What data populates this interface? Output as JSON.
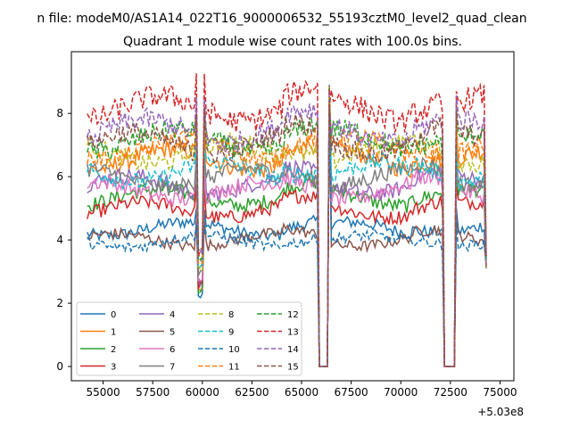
{
  "chart_data": {
    "type": "line",
    "suptitle": "n file: modeM0/AS1A14_022T16_9000006532_55193cztM0_level2_quad_clean",
    "title": "Quadrant 1 module wise count rates with 100.0s bins.",
    "xlabel": "",
    "ylabel": "",
    "x_offset_label": "+5.03e8",
    "xlim": [
      53400,
      75700
    ],
    "ylim": [
      -0.45,
      9.95
    ],
    "x_ticks": [
      55000,
      57500,
      60000,
      62500,
      65000,
      67500,
      70000,
      72500,
      75000
    ],
    "x_tick_labels": [
      "55000",
      "57500",
      "60000",
      "62500",
      "65000",
      "67500",
      "70000",
      "72500",
      "75000"
    ],
    "y_ticks": [
      0,
      2,
      4,
      6,
      8
    ],
    "y_tick_labels": [
      "0",
      "2",
      "4",
      "6",
      "8"
    ],
    "x_range": [
      54200,
      74300
    ],
    "bin_width_s": 100,
    "features": {
      "dip": {
        "center": 59900,
        "min": 2.1
      },
      "gaps": [
        [
          65900,
          66350
        ],
        [
          72150,
          72750
        ]
      ],
      "spike_before_gap": 8.9
    },
    "legend": {
      "location": "lower-left",
      "columns": 4
    },
    "series": [
      {
        "name": "0",
        "mean": 4.35,
        "color": "#1f77b4",
        "dashed": false
      },
      {
        "name": "1",
        "mean": 6.55,
        "color": "#ff7f0e",
        "dashed": false
      },
      {
        "name": "2",
        "mean": 5.35,
        "color": "#2ca02c",
        "dashed": false
      },
      {
        "name": "3",
        "mean": 4.95,
        "color": "#d62728",
        "dashed": false
      },
      {
        "name": "4",
        "mean": 5.75,
        "color": "#9467bd",
        "dashed": false
      },
      {
        "name": "5",
        "mean": 4.0,
        "color": "#8c564b",
        "dashed": false
      },
      {
        "name": "6",
        "mean": 5.55,
        "color": "#e377c2",
        "dashed": false
      },
      {
        "name": "7",
        "mean": 5.95,
        "color": "#7f7f7f",
        "dashed": false
      },
      {
        "name": "8",
        "mean": 6.75,
        "color": "#bcbd22",
        "dashed": true
      },
      {
        "name": "9",
        "mean": 6.15,
        "color": "#17becf",
        "dashed": true
      },
      {
        "name": "10",
        "mean": 3.95,
        "color": "#1f77b4",
        "dashed": true
      },
      {
        "name": "11",
        "mean": 6.9,
        "color": "#ff7f0e",
        "dashed": true
      },
      {
        "name": "12",
        "mean": 7.15,
        "color": "#2ca02c",
        "dashed": true
      },
      {
        "name": "13",
        "mean": 8.15,
        "color": "#d62728",
        "dashed": true
      },
      {
        "name": "14",
        "mean": 7.45,
        "color": "#9467bd",
        "dashed": true
      },
      {
        "name": "15",
        "mean": 7.05,
        "color": "#8c564b",
        "dashed": true
      }
    ]
  }
}
